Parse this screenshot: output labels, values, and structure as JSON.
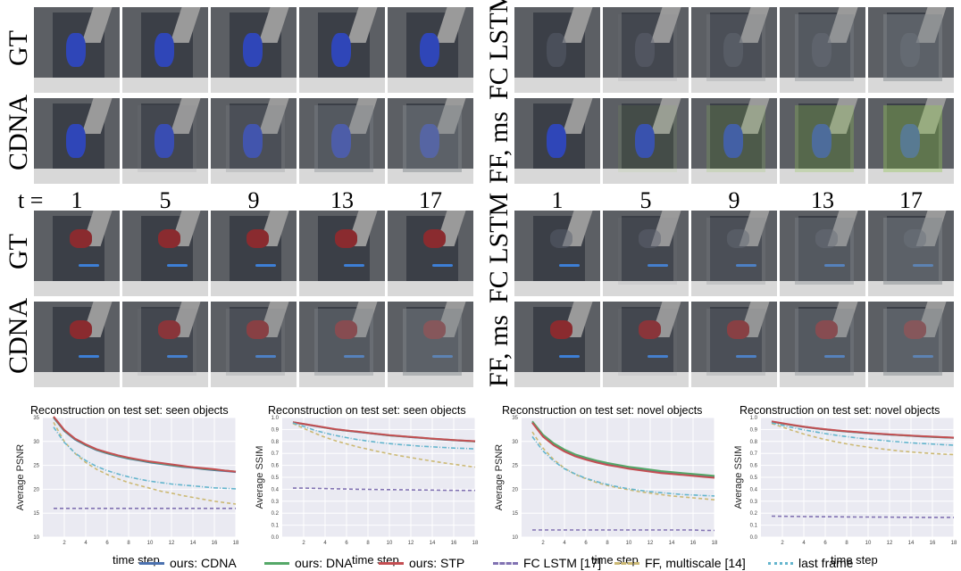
{
  "frames": {
    "step_prefix": "t =",
    "steps": [
      "1",
      "5",
      "9",
      "13",
      "17"
    ],
    "panels": [
      {
        "rows": [
          {
            "label": "GT",
            "scene": "glove"
          },
          {
            "label": "CDNA",
            "scene": "glove"
          }
        ]
      },
      {
        "rows": [
          {
            "label": "FC LSTM",
            "scene": "glove"
          },
          {
            "label": "FF, ms",
            "scene": "glove"
          }
        ]
      },
      {
        "rows": [
          {
            "label": "GT",
            "scene": "red"
          },
          {
            "label": "CDNA",
            "scene": "red"
          }
        ]
      },
      {
        "rows": [
          {
            "label": "FC LSTM",
            "scene": "red"
          },
          {
            "label": "FF, ms",
            "scene": "red"
          }
        ]
      }
    ]
  },
  "colors": {
    "cdna": "#4c72b0",
    "dna": "#55a868",
    "stp": "#c44e52",
    "fclstm": "#8172b2",
    "ffms": "#ccb974",
    "last": "#64b5cd"
  },
  "legend": [
    {
      "label": "ours: CDNA",
      "color": "#4c72b0",
      "style": "solid"
    },
    {
      "label": "ours: DNA",
      "color": "#55a868",
      "style": "solid"
    },
    {
      "label": "ours: STP",
      "color": "#c44e52",
      "style": "solid"
    },
    {
      "label": "FC LSTM [17]",
      "color": "#8172b2",
      "style": "dashed"
    },
    {
      "label": "FF, multiscale [14]",
      "color": "#ccb974",
      "style": "dashed"
    },
    {
      "label": "last frame",
      "color": "#64b5cd",
      "style": "dashdot"
    }
  ],
  "chart_data": [
    {
      "type": "line",
      "title": "Reconstruction on test set: seen objects",
      "ylabel": "Average PSNR",
      "xlabel": "time step",
      "ylim": [
        10,
        35
      ],
      "xlim": [
        0,
        18
      ],
      "xticks": [
        2,
        4,
        6,
        8,
        10,
        12,
        14,
        16,
        18
      ],
      "yticks": [
        10,
        15,
        20,
        25,
        30,
        35
      ],
      "x": [
        1,
        2,
        3,
        4,
        5,
        6,
        7,
        8,
        9,
        10,
        11,
        12,
        13,
        14,
        15,
        16,
        17,
        18
      ],
      "series": [
        {
          "name": "ours: CDNA",
          "values": [
            35.0,
            32.2,
            30.4,
            29.2,
            28.2,
            27.5,
            26.9,
            26.4,
            26.0,
            25.6,
            25.3,
            25.0,
            24.7,
            24.5,
            24.2,
            24.0,
            23.8,
            23.6
          ]
        },
        {
          "name": "ours: DNA",
          "values": [
            35.1,
            32.3,
            30.5,
            29.3,
            28.3,
            27.6,
            27.0,
            26.5,
            26.1,
            25.7,
            25.4,
            25.1,
            24.8,
            24.6,
            24.3,
            24.1,
            23.9,
            23.7
          ]
        },
        {
          "name": "ours: STP",
          "values": [
            35.2,
            32.4,
            30.6,
            29.4,
            28.4,
            27.7,
            27.1,
            26.6,
            26.2,
            25.8,
            25.5,
            25.2,
            24.9,
            24.6,
            24.4,
            24.2,
            23.9,
            23.7
          ]
        },
        {
          "name": "FC LSTM [17]",
          "values": [
            16.0,
            16.0,
            16.0,
            16.0,
            16.0,
            16.0,
            16.0,
            16.0,
            16.0,
            16.0,
            16.0,
            16.0,
            16.0,
            16.0,
            16.0,
            16.0,
            16.0,
            16.0
          ]
        },
        {
          "name": "FF, multiscale [14]",
          "values": [
            34.0,
            30.0,
            27.5,
            25.6,
            24.2,
            23.1,
            22.2,
            21.4,
            20.8,
            20.2,
            19.6,
            19.2,
            18.7,
            18.3,
            17.9,
            17.5,
            17.2,
            16.9
          ]
        },
        {
          "name": "last frame",
          "values": [
            33.0,
            29.8,
            27.6,
            26.0,
            24.8,
            23.9,
            23.2,
            22.6,
            22.1,
            21.7,
            21.4,
            21.1,
            20.9,
            20.7,
            20.5,
            20.3,
            20.2,
            20.1
          ]
        }
      ]
    },
    {
      "type": "line",
      "title": "Reconstruction on test set: seen objects",
      "ylabel": "Average SSIM",
      "xlabel": "time step",
      "ylim": [
        0.0,
        1.0
      ],
      "xlim": [
        0,
        18
      ],
      "xticks": [
        2,
        4,
        6,
        8,
        10,
        12,
        14,
        16,
        18
      ],
      "yticks": [
        0.0,
        0.1,
        0.2,
        0.3,
        0.4,
        0.5,
        0.6,
        0.7,
        0.8,
        0.9,
        1.0
      ],
      "x": [
        1,
        2,
        3,
        4,
        5,
        6,
        7,
        8,
        9,
        10,
        11,
        12,
        13,
        14,
        15,
        16,
        17,
        18
      ],
      "series": [
        {
          "name": "ours: CDNA",
          "values": [
            0.96,
            0.945,
            0.93,
            0.915,
            0.9,
            0.89,
            0.88,
            0.87,
            0.86,
            0.85,
            0.843,
            0.836,
            0.829,
            0.822,
            0.816,
            0.81,
            0.805,
            0.8
          ]
        },
        {
          "name": "ours: DNA",
          "values": [
            0.96,
            0.946,
            0.931,
            0.916,
            0.901,
            0.891,
            0.881,
            0.871,
            0.861,
            0.851,
            0.844,
            0.837,
            0.83,
            0.823,
            0.817,
            0.811,
            0.806,
            0.801
          ]
        },
        {
          "name": "ours: STP",
          "values": [
            0.961,
            0.947,
            0.932,
            0.917,
            0.902,
            0.892,
            0.882,
            0.872,
            0.862,
            0.852,
            0.845,
            0.838,
            0.831,
            0.824,
            0.818,
            0.812,
            0.807,
            0.802
          ]
        },
        {
          "name": "FC LSTM [17]",
          "values": [
            0.41,
            0.41,
            0.408,
            0.406,
            0.404,
            0.402,
            0.4,
            0.399,
            0.398,
            0.397,
            0.396,
            0.395,
            0.394,
            0.393,
            0.392,
            0.391,
            0.39,
            0.39
          ]
        },
        {
          "name": "FF, multiscale [14]",
          "values": [
            0.95,
            0.91,
            0.87,
            0.835,
            0.805,
            0.78,
            0.755,
            0.735,
            0.715,
            0.697,
            0.68,
            0.665,
            0.65,
            0.636,
            0.622,
            0.61,
            0.597,
            0.585
          ]
        },
        {
          "name": "last frame",
          "values": [
            0.955,
            0.925,
            0.895,
            0.87,
            0.85,
            0.832,
            0.816,
            0.803,
            0.792,
            0.782,
            0.774,
            0.767,
            0.76,
            0.755,
            0.75,
            0.745,
            0.742,
            0.738
          ]
        }
      ]
    },
    {
      "type": "line",
      "title": "Reconstruction on test set: novel objects",
      "ylabel": "Average PSNR",
      "xlabel": "time step",
      "ylim": [
        10,
        35
      ],
      "xlim": [
        0,
        18
      ],
      "xticks": [
        2,
        4,
        6,
        8,
        10,
        12,
        14,
        16,
        18
      ],
      "yticks": [
        10,
        15,
        20,
        25,
        30,
        35
      ],
      "x": [
        1,
        2,
        3,
        4,
        5,
        6,
        7,
        8,
        9,
        10,
        11,
        12,
        13,
        14,
        15,
        16,
        17,
        18
      ],
      "series": [
        {
          "name": "ours: CDNA",
          "values": [
            34.0,
            31.2,
            29.4,
            28.1,
            27.1,
            26.4,
            25.8,
            25.3,
            24.9,
            24.5,
            24.2,
            23.9,
            23.6,
            23.4,
            23.2,
            23.0,
            22.8,
            22.6
          ]
        },
        {
          "name": "ours: DNA",
          "values": [
            34.2,
            31.4,
            29.6,
            28.3,
            27.3,
            26.6,
            26.0,
            25.5,
            25.1,
            24.7,
            24.4,
            24.1,
            23.8,
            23.6,
            23.4,
            23.2,
            23.0,
            22.8
          ]
        },
        {
          "name": "ours: STP",
          "values": [
            33.9,
            31.0,
            29.2,
            27.9,
            26.9,
            26.2,
            25.6,
            25.1,
            24.7,
            24.3,
            24.0,
            23.7,
            23.4,
            23.2,
            23.0,
            22.8,
            22.6,
            22.4
          ]
        },
        {
          "name": "FC LSTM [17]",
          "values": [
            11.5,
            11.5,
            11.5,
            11.5,
            11.5,
            11.5,
            11.5,
            11.5,
            11.5,
            11.5,
            11.5,
            11.5,
            11.5,
            11.5,
            11.5,
            11.5,
            11.4,
            11.4
          ]
        },
        {
          "name": "FF, multiscale [14]",
          "values": [
            32.0,
            28.6,
            26.2,
            24.4,
            23.1,
            22.2,
            21.4,
            20.8,
            20.3,
            19.9,
            19.5,
            19.2,
            18.9,
            18.6,
            18.4,
            18.2,
            18.0,
            17.8
          ]
        },
        {
          "name": "last frame",
          "values": [
            31.0,
            28.0,
            25.9,
            24.3,
            23.2,
            22.3,
            21.6,
            21.0,
            20.5,
            20.1,
            19.8,
            19.5,
            19.3,
            19.1,
            18.9,
            18.8,
            18.7,
            18.6
          ]
        }
      ]
    },
    {
      "type": "line",
      "title": "Reconstruction on test set: novel objects",
      "ylabel": "Average SSIM",
      "xlabel": "time step",
      "ylim": [
        0.0,
        1.0
      ],
      "xlim": [
        0,
        18
      ],
      "xticks": [
        2,
        4,
        6,
        8,
        10,
        12,
        14,
        16,
        18
      ],
      "yticks": [
        0.0,
        0.1,
        0.2,
        0.3,
        0.4,
        0.5,
        0.6,
        0.7,
        0.8,
        0.9,
        1.0
      ],
      "x": [
        1,
        2,
        3,
        4,
        5,
        6,
        7,
        8,
        9,
        10,
        11,
        12,
        13,
        14,
        15,
        16,
        17,
        18
      ],
      "series": [
        {
          "name": "ours: CDNA",
          "values": [
            0.965,
            0.95,
            0.935,
            0.922,
            0.91,
            0.9,
            0.891,
            0.883,
            0.876,
            0.869,
            0.863,
            0.857,
            0.852,
            0.847,
            0.842,
            0.838,
            0.834,
            0.83
          ]
        },
        {
          "name": "ours: DNA",
          "values": [
            0.966,
            0.951,
            0.936,
            0.923,
            0.911,
            0.901,
            0.892,
            0.884,
            0.877,
            0.87,
            0.864,
            0.858,
            0.853,
            0.848,
            0.843,
            0.839,
            0.835,
            0.831
          ]
        },
        {
          "name": "ours: STP",
          "values": [
            0.967,
            0.952,
            0.937,
            0.924,
            0.912,
            0.902,
            0.893,
            0.885,
            0.878,
            0.871,
            0.865,
            0.859,
            0.854,
            0.849,
            0.844,
            0.84,
            0.836,
            0.832
          ]
        },
        {
          "name": "FC LSTM [17]",
          "values": [
            0.175,
            0.174,
            0.173,
            0.172,
            0.171,
            0.17,
            0.17,
            0.169,
            0.168,
            0.168,
            0.167,
            0.167,
            0.166,
            0.166,
            0.165,
            0.165,
            0.165,
            0.164
          ]
        },
        {
          "name": "FF, multiscale [14]",
          "values": [
            0.95,
            0.92,
            0.89,
            0.862,
            0.838,
            0.816,
            0.797,
            0.78,
            0.765,
            0.752,
            0.74,
            0.73,
            0.72,
            0.712,
            0.705,
            0.699,
            0.694,
            0.69
          ]
        },
        {
          "name": "last frame",
          "values": [
            0.955,
            0.935,
            0.915,
            0.897,
            0.881,
            0.866,
            0.852,
            0.84,
            0.829,
            0.82,
            0.811,
            0.803,
            0.796,
            0.789,
            0.783,
            0.778,
            0.773,
            0.769
          ]
        }
      ]
    }
  ]
}
